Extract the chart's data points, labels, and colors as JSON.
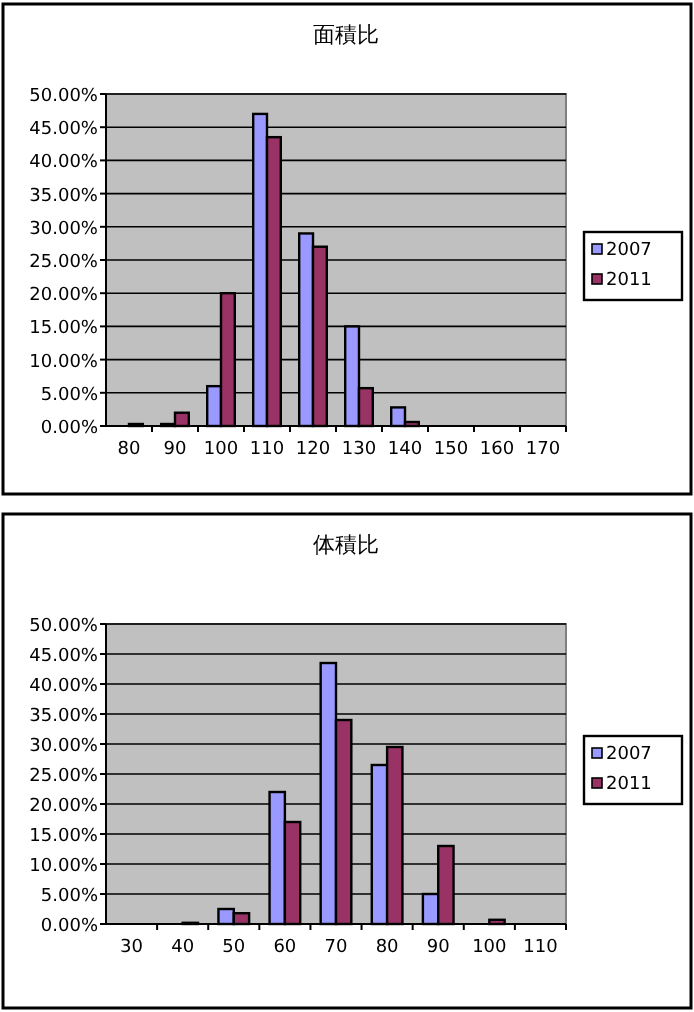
{
  "chart_data": [
    {
      "type": "bar",
      "title": "面積比",
      "categories": [
        "80",
        "90",
        "100",
        "110",
        "120",
        "130",
        "140",
        "150",
        "160",
        "170"
      ],
      "series": [
        {
          "name": "2007",
          "color": "#9999ff",
          "values": [
            0,
            0.3,
            6,
            47,
            29,
            15,
            2.8,
            0,
            0,
            0
          ]
        },
        {
          "name": "2011",
          "color": "#993366",
          "values": [
            0.3,
            2,
            20,
            43.5,
            27,
            5.7,
            0.6,
            0,
            0,
            0
          ]
        }
      ],
      "ylim": [
        0,
        50
      ],
      "yticks": [
        {
          "value": 0,
          "label": "0.00%"
        },
        {
          "value": 5,
          "label": "5.00%"
        },
        {
          "value": 10,
          "label": "10.00%"
        },
        {
          "value": 15,
          "label": "15.00%"
        },
        {
          "value": 20,
          "label": "20.00%"
        },
        {
          "value": 25,
          "label": "25.00%"
        },
        {
          "value": 30,
          "label": "30.00%"
        },
        {
          "value": 35,
          "label": "35.00%"
        },
        {
          "value": 40,
          "label": "40.00%"
        },
        {
          "value": 45,
          "label": "45.00%"
        },
        {
          "value": 50,
          "label": "50.00%"
        }
      ],
      "grid": "y",
      "legend": "right"
    },
    {
      "type": "bar",
      "title": "体積比",
      "categories": [
        "30",
        "40",
        "50",
        "60",
        "70",
        "80",
        "90",
        "100",
        "110"
      ],
      "series": [
        {
          "name": "2007",
          "color": "#9999ff",
          "values": [
            0,
            0,
            2.5,
            22,
            43.5,
            26.5,
            5,
            0,
            0
          ]
        },
        {
          "name": "2011",
          "color": "#993366",
          "values": [
            0,
            0.2,
            1.8,
            17,
            34,
            29.5,
            13,
            0.7,
            0
          ]
        }
      ],
      "ylim": [
        0,
        50
      ],
      "yticks": [
        {
          "value": 0,
          "label": "0.00%"
        },
        {
          "value": 5,
          "label": "5.00%"
        },
        {
          "value": 10,
          "label": "10.00%"
        },
        {
          "value": 15,
          "label": "15.00%"
        },
        {
          "value": 20,
          "label": "20.00%"
        },
        {
          "value": 25,
          "label": "25.00%"
        },
        {
          "value": 30,
          "label": "30.00%"
        },
        {
          "value": 35,
          "label": "35.00%"
        },
        {
          "value": 40,
          "label": "40.00%"
        },
        {
          "value": 45,
          "label": "45.00%"
        },
        {
          "value": 50,
          "label": "50.00%"
        }
      ],
      "grid": "y",
      "legend": "right"
    }
  ]
}
